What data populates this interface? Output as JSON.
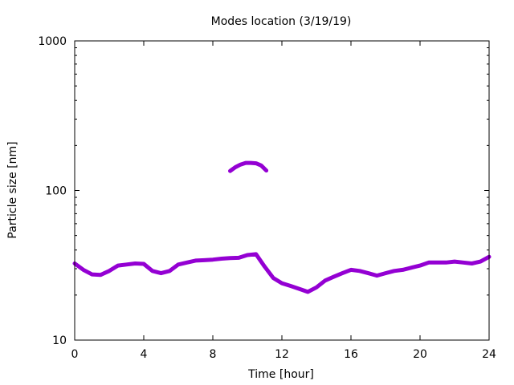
{
  "chart_data": {
    "type": "line",
    "title": "Modes location (3/19/19)",
    "xlabel": "Time [hour]",
    "ylabel": "Particle size [nm]",
    "xlim": [
      0,
      24
    ],
    "ylim": [
      10,
      1000
    ],
    "yscale": "log",
    "grid": false,
    "legend": "none",
    "color": "#9400d3",
    "x_ticks": [
      0,
      4,
      8,
      12,
      16,
      20,
      24
    ],
    "x_tick_labels": [
      "0",
      "4",
      "8",
      "12",
      "16",
      "20",
      "24"
    ],
    "y_ticks": [
      10,
      100,
      1000
    ],
    "y_tick_labels": [
      "10",
      "100",
      "1000"
    ],
    "series": [
      {
        "x": [
          0.0,
          0.5,
          1.0,
          1.5,
          2.0,
          2.5,
          3.0,
          3.5,
          4.0,
          4.5,
          5.0,
          5.5,
          6.0,
          6.5,
          7.0,
          7.5,
          8.0,
          8.5,
          9.0,
          9.5,
          10.0,
          10.5,
          11.0,
          11.5,
          12.0,
          12.5,
          13.0,
          13.5,
          14.0,
          14.5,
          15.0,
          15.5,
          16.0,
          16.5,
          17.0,
          17.5,
          18.0,
          18.5,
          19.0,
          19.5,
          20.0,
          20.5,
          21.0,
          21.5,
          22.0,
          22.5,
          23.0,
          23.5,
          24.0
        ],
        "y": [
          32.5,
          29.5,
          27.5,
          27.3,
          29.0,
          31.5,
          32.0,
          32.5,
          32.3,
          29.0,
          28.0,
          29.0,
          32.0,
          33.0,
          34.0,
          34.2,
          34.5,
          35.0,
          35.3,
          35.5,
          37.0,
          37.5,
          31.0,
          26.0,
          24.0,
          23.0,
          22.0,
          21.0,
          22.5,
          25.0,
          26.5,
          28.0,
          29.5,
          29.0,
          28.0,
          27.0,
          28.0,
          29.0,
          29.5,
          30.5,
          31.5,
          33.0,
          33.0,
          33.0,
          33.5,
          33.0,
          32.5,
          33.5,
          36.0
        ]
      },
      {
        "x": [
          9.0,
          9.3,
          9.6,
          9.9,
          10.2,
          10.5,
          10.8,
          11.1
        ],
        "y": [
          135,
          143,
          149,
          153,
          153,
          152,
          147,
          136
        ]
      }
    ]
  }
}
